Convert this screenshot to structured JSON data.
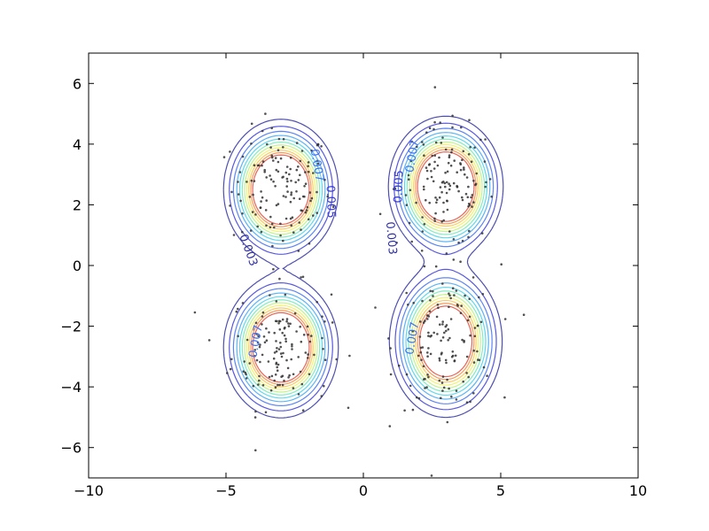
{
  "chart_data": {
    "type": "scatter",
    "title": "",
    "xlabel": "",
    "ylabel": "",
    "xlim": [
      -10,
      10
    ],
    "ylim": [
      -7,
      7
    ],
    "xticks": [
      -10,
      -5,
      0,
      5,
      10
    ],
    "yticks": [
      -6,
      -4,
      -2,
      0,
      2,
      4,
      6
    ],
    "xtick_labels": [
      "−10",
      "−5",
      "0",
      "5",
      "10"
    ],
    "ytick_labels": [
      "−6",
      "−4",
      "−2",
      "0",
      "2",
      "4",
      "6"
    ],
    "grid": false,
    "overlay": "density contour lines over scattered sample points",
    "clusters": [
      {
        "center": [
          -3.0,
          2.5
        ],
        "spread": [
          0.9,
          1.0
        ]
      },
      {
        "center": [
          -3.0,
          -2.7
        ],
        "spread": [
          0.9,
          1.0
        ]
      },
      {
        "center": [
          3.0,
          2.6
        ],
        "spread": [
          0.9,
          1.0
        ]
      },
      {
        "center": [
          3.0,
          -2.5
        ],
        "spread": [
          0.9,
          1.1
        ]
      }
    ],
    "contour_levels": [
      0.003,
      0.005,
      0.007,
      0.009,
      0.011,
      0.013,
      0.015,
      0.017,
      0.019,
      0.021,
      0.023
    ],
    "contour_colors": [
      "#2f2fa0",
      "#3a3ad8",
      "#3f6ff0",
      "#3fa6f4",
      "#45d1e6",
      "#6fe8b6",
      "#b8f07a",
      "#eef05a",
      "#f8c24a",
      "#f28a3e",
      "#e04a3a"
    ],
    "contour_labels": [
      {
        "text": "0.003",
        "x": -4.2,
        "y": 0.5,
        "angle": 70,
        "color": "#2f2fa0"
      },
      {
        "text": "0.005",
        "x": -1.2,
        "y": 2.1,
        "angle": 88,
        "color": "#3a3ad8"
      },
      {
        "text": "0.007",
        "x": -1.7,
        "y": 3.3,
        "angle": 80,
        "color": "#3f6ff0"
      },
      {
        "text": "0.005",
        "x": 1.3,
        "y": 2.6,
        "angle": -88,
        "color": "#3a3ad8"
      },
      {
        "text": "0.003",
        "x": 1.0,
        "y": 0.9,
        "angle": 85,
        "color": "#2f2fa0"
      },
      {
        "text": "0.007",
        "x": 1.8,
        "y": 3.6,
        "angle": -80,
        "color": "#3f6ff0"
      },
      {
        "text": "0.007",
        "x": -3.9,
        "y": -2.5,
        "angle": -80,
        "color": "#3f6ff0"
      },
      {
        "text": "0.007",
        "x": 1.8,
        "y": -2.4,
        "angle": -80,
        "color": "#3f6ff0"
      }
    ],
    "point_color": "#333333",
    "n_points_per_cluster": 140
  }
}
